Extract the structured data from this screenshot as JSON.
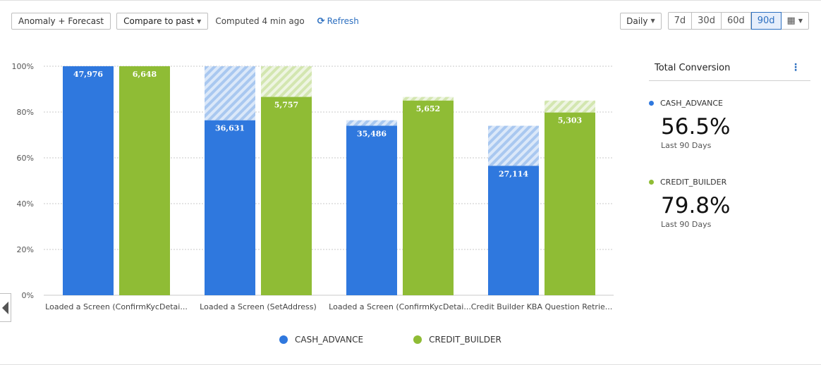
{
  "toolbar": {
    "anomaly_label": "Anomaly + Forecast",
    "compare_label": "Compare to past",
    "computed_text": "Computed 4 min ago",
    "refresh_label": "Refresh",
    "refresh_icon": "refresh-icon"
  },
  "range": {
    "interval_label": "Daily",
    "options": [
      "7d",
      "30d",
      "60d",
      "90d"
    ],
    "active": "90d",
    "calendar_icon": "calendar-icon"
  },
  "panel": {
    "title": "Total Conversion",
    "menu_icon": "kebab-icon",
    "metrics": [
      {
        "name": "CASH_ADVANCE",
        "value": "56.5%",
        "sub": "Last 90 Days",
        "color": "#2f78de"
      },
      {
        "name": "CREDIT_BUILDER",
        "value": "79.8%",
        "sub": "Last 90 Days",
        "color": "#8fbc35"
      }
    ]
  },
  "colors": {
    "cash": "#2f78de",
    "credit": "#8fbc35",
    "cash_hatch": "#a9c8f0",
    "credit_hatch": "#d3e6b0",
    "link": "#2c6fc0"
  },
  "chart_data": {
    "type": "bar",
    "categories": [
      "Loaded a Screen (ConfirmKycDetai...",
      "Loaded a Screen (SetAddress)",
      "Loaded a Screen (ConfirmKycDetai...",
      "Credit Builder KBA Question Retrie..."
    ],
    "ylim": [
      0,
      100
    ],
    "yticks": [
      0,
      20,
      40,
      60,
      80,
      100
    ],
    "ytick_labels": [
      "0%",
      "20%",
      "40%",
      "60%",
      "80%",
      "100%"
    ],
    "grid": true,
    "legend_position": "bottom",
    "series": [
      {
        "name": "CASH_ADVANCE",
        "values": [
          100,
          76.4,
          74.0,
          56.5
        ],
        "previous_step": [
          100,
          100,
          76.4,
          74.0
        ],
        "labels": [
          "47,976",
          "36,631",
          "35,486",
          "27,114"
        ]
      },
      {
        "name": "CREDIT_BUILDER",
        "values": [
          100,
          86.6,
          85.0,
          79.8
        ],
        "previous_step": [
          100,
          100,
          86.6,
          85.0
        ],
        "labels": [
          "6,648",
          "5,757",
          "5,652",
          "5,303"
        ]
      }
    ]
  }
}
